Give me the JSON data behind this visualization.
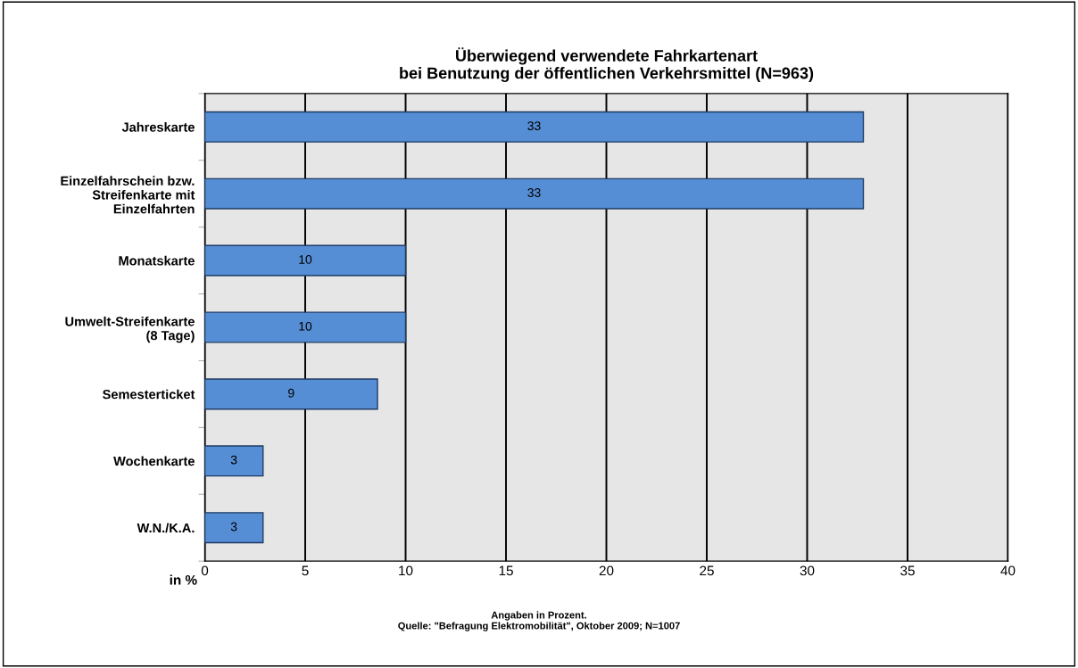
{
  "chart_data": {
    "type": "bar",
    "orientation": "horizontal",
    "title": "Überwiegend verwendete Fahrkartenart\nbei Benutzung der öffentlichen Verkehrsmittel (N=963)",
    "xlabel": "in %",
    "categories": [
      "Jahreskarte",
      "Einzelfahrschein bzw.\nStreifenkarte mit\nEinzelfahrten",
      "Monatskarte",
      "Umwelt-Streifenkarte\n(8 Tage)",
      "Semesterticket",
      "Wochenkarte",
      "W.N./K.A."
    ],
    "values": [
      32.8,
      32.8,
      10.0,
      10.0,
      8.6,
      2.9,
      2.9
    ],
    "value_labels": [
      "33",
      "33",
      "10",
      "10",
      "9",
      "3",
      "3"
    ],
    "color": "#558ed5",
    "xlim": [
      0,
      40
    ],
    "xticks": [
      0,
      5,
      10,
      15,
      20,
      25,
      30,
      35,
      40
    ],
    "grid": "x",
    "annotations": [
      "Angaben in Prozent.\nQuelle: \"Befragung Elektromobilität\", Oktober 2009; N=1007"
    ]
  }
}
